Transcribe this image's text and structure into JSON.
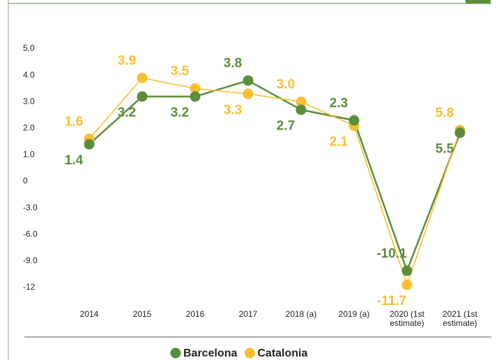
{
  "chart_data": {
    "type": "line",
    "categories": [
      "2014",
      "2015",
      "2016",
      "2017",
      "2018 (a)",
      "2019 (a)",
      "2020 (1st estimate)",
      "2021 (1st estimate)"
    ],
    "series": [
      {
        "name": "Barcelona",
        "color": "#5b8e3b",
        "values": [
          1.4,
          3.2,
          3.2,
          3.8,
          2.7,
          2.3,
          -10.1,
          5.5
        ],
        "value_labels": [
          "1.4",
          "3.2",
          "3.2",
          "3.8",
          "2.7",
          "2.3",
          "-10.1",
          "5.5"
        ]
      },
      {
        "name": "Catalonia",
        "color": "#fbbe2e",
        "values": [
          1.6,
          3.9,
          3.5,
          3.3,
          3.0,
          2.1,
          -11.7,
          5.8
        ],
        "value_labels": [
          "1.6",
          "3.9",
          "3.5",
          "3.3",
          "3.0",
          "2.1",
          "-11.7",
          "5.8"
        ]
      }
    ],
    "ylim": [
      -12,
      5
    ],
    "yticks": [
      {
        "value": 5,
        "label": "5.0"
      },
      {
        "value": 4,
        "label": "4.0"
      },
      {
        "value": 3,
        "label": "3.0"
      },
      {
        "value": 2,
        "label": "2.0"
      },
      {
        "value": 1,
        "label": "1.0"
      },
      0,
      {
        "value": -3,
        "label": "-3.0"
      },
      {
        "value": -6,
        "label": "-6.0"
      },
      {
        "value": -9,
        "label": "-9.0"
      },
      -12
    ],
    "legend": "bottom"
  }
}
